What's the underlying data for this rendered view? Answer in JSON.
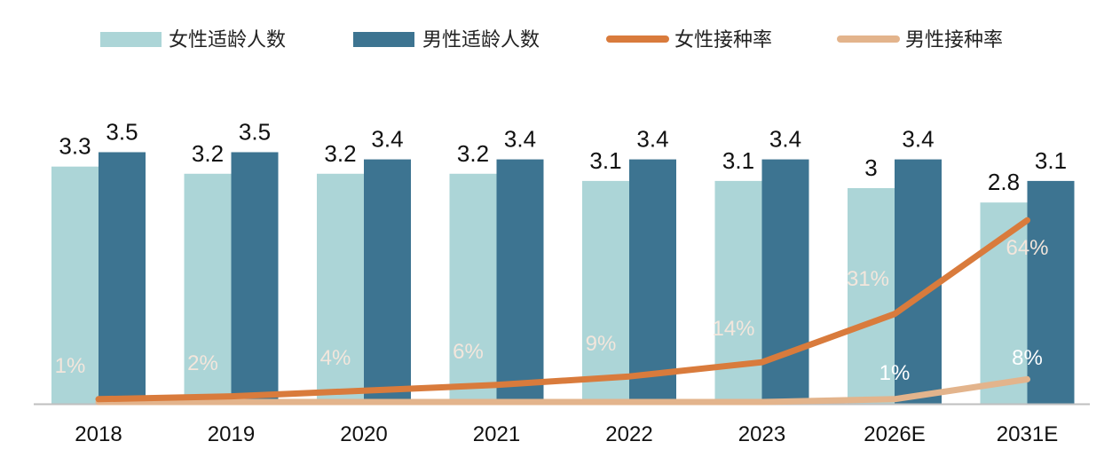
{
  "chart_data": {
    "type": "bar",
    "categories": [
      "2018",
      "2019",
      "2020",
      "2021",
      "2022",
      "2023",
      "2026E",
      "2031E"
    ],
    "series": [
      {
        "name": "女性适龄人数",
        "kind": "bar",
        "color": "#acd5d7",
        "values": [
          3.3,
          3.2,
          3.2,
          3.2,
          3.1,
          3.1,
          3,
          2.8
        ],
        "labels": [
          "3.3",
          "3.2",
          "3.2",
          "3.2",
          "3.1",
          "3.1",
          "3",
          "2.8"
        ]
      },
      {
        "name": "男性适龄人数",
        "kind": "bar",
        "color": "#3d7491",
        "values": [
          3.5,
          3.5,
          3.4,
          3.4,
          3.4,
          3.4,
          3.4,
          3.1
        ],
        "labels": [
          "3.5",
          "3.5",
          "3.4",
          "3.4",
          "3.4",
          "3.4",
          "3.4",
          "3.1"
        ]
      },
      {
        "name": "女性接种率",
        "kind": "line",
        "color": "#d97b3c",
        "label_color": "#f4e4da",
        "values": [
          1,
          2,
          4,
          6,
          9,
          14,
          31,
          64
        ],
        "labels": [
          "1%",
          "2%",
          "4%",
          "6%",
          "9%",
          "14%",
          "31%",
          "64%"
        ]
      },
      {
        "name": "男性接种率",
        "kind": "line",
        "color": "#e3b48c",
        "label_color": "#ffffff",
        "values": [
          0,
          0,
          0,
          0,
          0,
          0,
          1,
          8
        ],
        "labels": [
          "",
          "",
          "",
          "",
          "",
          "",
          "1%",
          "8%"
        ]
      }
    ],
    "ylim_bar": [
      0,
      4.0
    ],
    "ylim_line": [
      0,
      80
    ],
    "title": "",
    "xlabel": "",
    "ylabel": "",
    "legend_position": "top",
    "grid": false
  }
}
